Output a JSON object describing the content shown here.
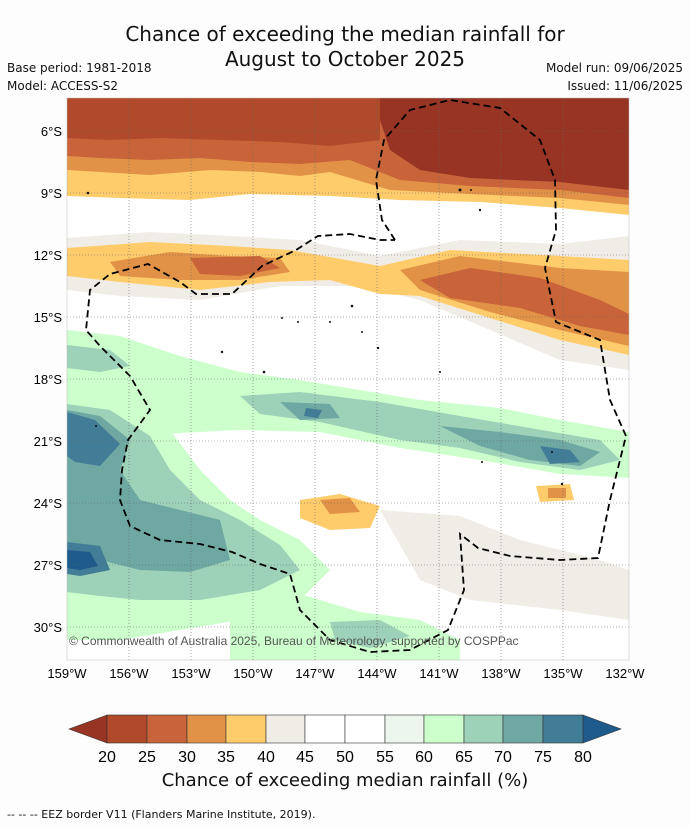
{
  "header": {
    "title_line1": "Chance of exceeding the median rainfall for",
    "title_line2": "August to October 2025",
    "base_period": "Base period: 1981-2018",
    "model": "Model: ACCESS-S2",
    "model_run": "Model run: 09/06/2025",
    "issued": "Issued: 11/06/2025"
  },
  "map": {
    "lat_labels": [
      "6°S",
      "9°S",
      "12°S",
      "15°S",
      "18°S",
      "21°S",
      "24°S",
      "27°S",
      "30°S"
    ],
    "lon_labels": [
      "159°W",
      "156°W",
      "153°W",
      "150°W",
      "147°W",
      "144°W",
      "141°W",
      "138°W",
      "135°W",
      "132°W"
    ],
    "copyright": "© Commonwealth of Australia 2025, Bureau of Meteorology, supported by COSPPac",
    "colors": {
      "dry_extreme": "#983424",
      "dry_20": "#b14a2a",
      "dry_25": "#c8633a",
      "dry_30": "#e29246",
      "dry_35": "#ffcc6c",
      "neutral_40": "#f0ede6",
      "neutral": "#ffffff",
      "neutral_55": "#ecf6ec",
      "wet_60": "#ccffcc",
      "wet_65": "#9dd1b8",
      "wet_70": "#6fa7a3",
      "wet_75": "#427d97",
      "wet_extreme": "#1e5a8c"
    }
  },
  "colorbar": {
    "ticks": [
      "20",
      "25",
      "30",
      "35",
      "40",
      "45",
      "50",
      "55",
      "60",
      "65",
      "70",
      "75",
      "80"
    ],
    "label": "Chance of exceeding median rainfall (%)"
  },
  "footer": {
    "eez_note": "--  --  -- EEZ border V11 (Flanders Marine Institute, 2019)."
  }
}
